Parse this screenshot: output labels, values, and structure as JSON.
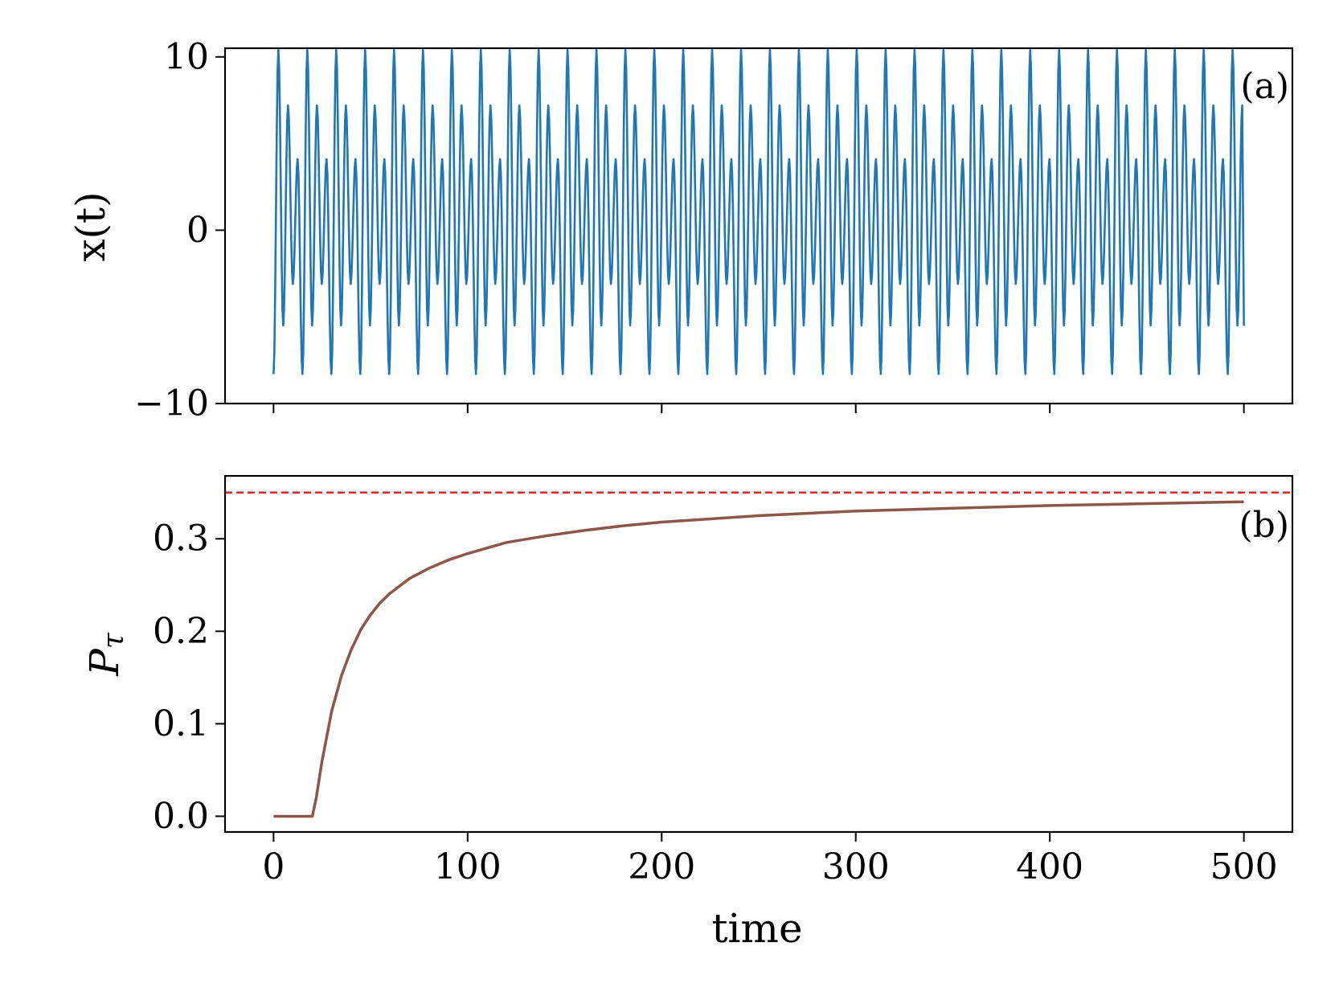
{
  "chart_data": [
    {
      "type": "line",
      "panel_label": "(a)",
      "xlabel": "",
      "ylabel": "x(t)",
      "xlim": [
        -25,
        525
      ],
      "ylim": [
        -10,
        10.5
      ],
      "xticks": [
        0,
        100,
        200,
        300,
        400,
        500
      ],
      "xtick_labels_visible": false,
      "yticks": [
        -10,
        0,
        10
      ],
      "ytick_labels": [
        "−10",
        "0",
        "10"
      ],
      "grid": false,
      "series": [
        {
          "color": "#1f77b4",
          "period": 14.9,
          "x_start": 0,
          "x_end": 500,
          "cycle_maxima": [
            10.4,
            7.2,
            4.1
          ],
          "cycle_minima": [
            -8.3,
            -5.5,
            -3.1
          ],
          "start_value": -8.3,
          "end_value": -5.5
        }
      ]
    },
    {
      "type": "line",
      "panel_label": "(b)",
      "xlabel": "time",
      "ylabel": "P_τ",
      "ylabel_main": "P",
      "ylabel_sub": "τ",
      "xlim": [
        -25,
        525
      ],
      "ylim": [
        -0.017,
        0.368
      ],
      "xticks": [
        0,
        100,
        200,
        300,
        400,
        500
      ],
      "xtick_labels": [
        "0",
        "100",
        "200",
        "300",
        "400",
        "500"
      ],
      "yticks": [
        0.0,
        0.1,
        0.2,
        0.3
      ],
      "ytick_labels": [
        "0.0",
        "0.1",
        "0.2",
        "0.3"
      ],
      "grid": false,
      "series": [
        {
          "color": "#8c564b",
          "x": [
            0,
            20,
            22,
            25,
            30,
            35,
            40,
            45,
            50,
            55,
            60,
            70,
            80,
            90,
            100,
            120,
            140,
            160,
            180,
            200,
            250,
            300,
            350,
            400,
            450,
            500
          ],
          "y": [
            0.0,
            0.0,
            0.02,
            0.06,
            0.114,
            0.152,
            0.18,
            0.202,
            0.218,
            0.231,
            0.241,
            0.257,
            0.268,
            0.277,
            0.284,
            0.296,
            0.303,
            0.309,
            0.314,
            0.318,
            0.325,
            0.33,
            0.333,
            0.336,
            0.338,
            0.34
          ]
        }
      ],
      "reference_line": {
        "y": 0.35,
        "color": "#e31a1c",
        "style": "dashed"
      }
    }
  ]
}
